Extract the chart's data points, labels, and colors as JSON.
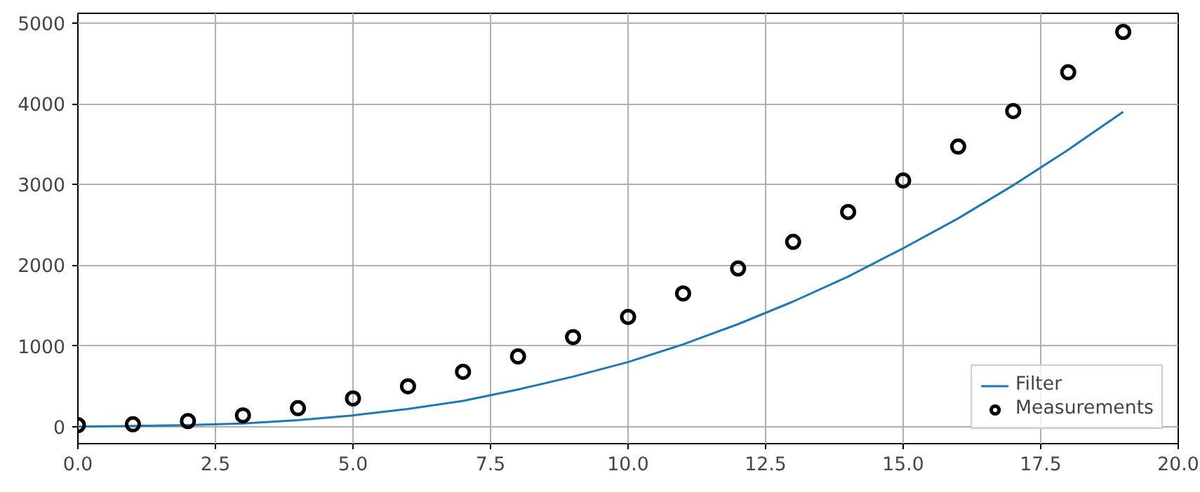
{
  "chart_data": {
    "type": "line",
    "x": [
      0,
      1,
      2,
      3,
      4,
      5,
      6,
      7,
      8,
      9,
      10,
      11,
      12,
      13,
      14,
      15,
      16,
      17,
      18,
      19
    ],
    "series": [
      {
        "name": "Filter",
        "color": "#1f77b4",
        "marker": "none",
        "line_style": "solid",
        "values": [
          0,
          10,
          20,
          40,
          80,
          140,
          220,
          320,
          460,
          620,
          800,
          1020,
          1270,
          1550,
          1860,
          2210,
          2580,
          2990,
          3430,
          3900
        ]
      },
      {
        "name": "Measurements",
        "type": "scatter",
        "color": "#000000",
        "marker": "circle",
        "values": [
          20,
          30,
          70,
          140,
          230,
          350,
          500,
          680,
          870,
          1110,
          1360,
          1650,
          1960,
          2290,
          2660,
          3050,
          3470,
          3910,
          4390,
          4890
        ]
      }
    ],
    "xlim": [
      0,
      20
    ],
    "xticks": [
      {
        "value": 0,
        "label": "0.0"
      },
      {
        "value": 2.5,
        "label": "2.5"
      },
      {
        "value": 5,
        "label": "5.0"
      },
      {
        "value": 7.5,
        "label": "7.5"
      },
      {
        "value": 10,
        "label": "10.0"
      },
      {
        "value": 12.5,
        "label": "12.5"
      },
      {
        "value": 15,
        "label": "15.0"
      },
      {
        "value": 17.5,
        "label": "17.5"
      },
      {
        "value": 20,
        "label": "20.0"
      }
    ],
    "ylim": [
      -210,
      5120
    ],
    "yticks": [
      0,
      1000,
      2000,
      3000,
      4000,
      5000
    ],
    "grid": true,
    "legend": "bottom right"
  }
}
